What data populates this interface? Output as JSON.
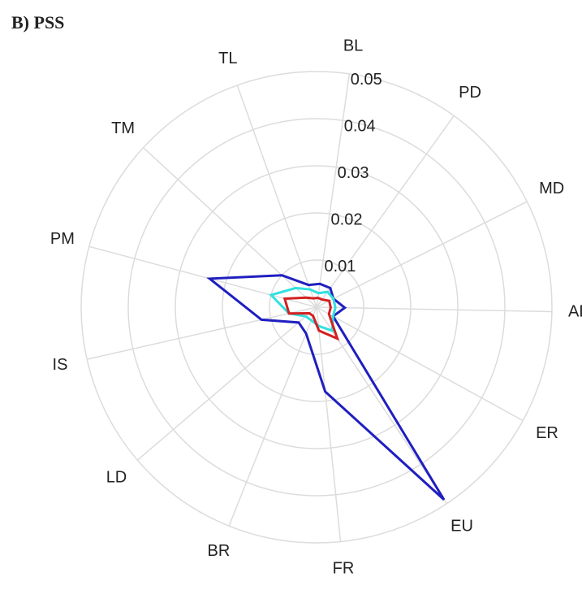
{
  "chart_data": {
    "type": "radar",
    "title": "B) PSS",
    "categories": [
      "BL",
      "PD",
      "MD",
      "AD",
      "ER",
      "EU",
      "FR",
      "BR",
      "LD",
      "IS",
      "PM",
      "TM",
      "TL"
    ],
    "series": [
      {
        "color": "#1f1fc0",
        "values": [
          0.005,
          0.005,
          0.004,
          0.006,
          0.004,
          0.049,
          0.018,
          0.006,
          0.005,
          0.012,
          0.0235,
          0.01,
          0.005
        ]
      },
      {
        "color": "#33e0e0",
        "values": [
          0.003,
          0.004,
          0.004,
          0.004,
          0.004,
          0.006,
          0.004,
          0.003,
          0.003,
          0.006,
          0.01,
          0.006,
          0.004
        ]
      },
      {
        "color": "#d42020",
        "values": [
          0.002,
          0.002,
          0.003,
          0.003,
          0.003,
          0.008,
          0.005,
          0.002,
          0.002,
          0.006,
          0.007,
          0.003,
          0.002
        ]
      }
    ],
    "rlim": [
      0,
      0.05
    ],
    "rticks": [
      0.01,
      0.02,
      0.03,
      0.04,
      0.05
    ],
    "grid": true
  }
}
